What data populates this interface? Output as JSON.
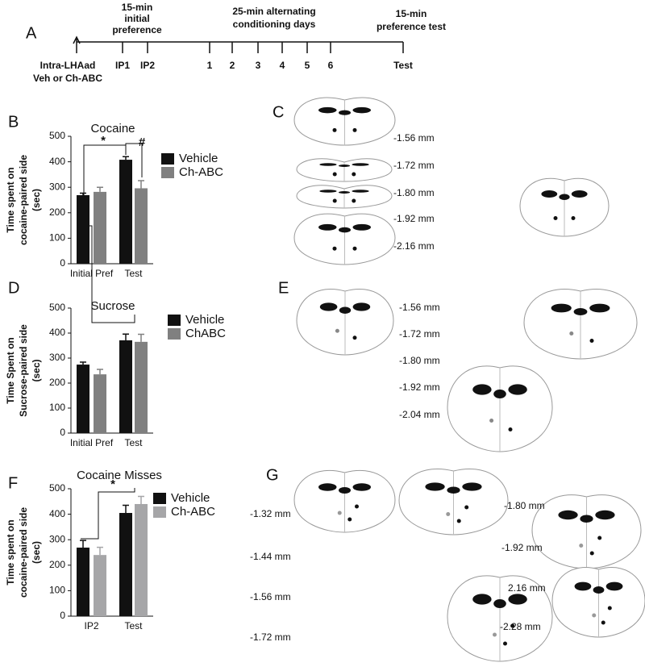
{
  "panel_letters": [
    "A",
    "B",
    "C",
    "D",
    "E",
    "F",
    "G"
  ],
  "timeline": {
    "top_labels": [
      [
        "15-min",
        "initial",
        "preference"
      ],
      [
        "25-min alternating",
        "conditioning days"
      ],
      [
        "15-min",
        "preference test"
      ]
    ],
    "injection": [
      "Intra-LHAad",
      "Veh or Ch-ABC"
    ],
    "points": [
      "IP1",
      "IP2",
      "1",
      "2",
      "3",
      "4",
      "5",
      "6",
      "Test"
    ]
  },
  "sections": {
    "C": [
      "-1.56 mm",
      "-1.72 mm",
      "-1.80 mm",
      "-1.92 mm",
      "-2.16 mm"
    ],
    "E": [
      "-1.56 mm",
      "-1.72 mm",
      "-1.80 mm",
      "-1.92 mm",
      "-2.04 mm"
    ],
    "G": [
      "-1.32 mm",
      "-1.44 mm",
      "-1.56 mm",
      "-1.72 mm",
      "-1.80 mm",
      "-1.92 mm",
      "2.16 mm",
      "-2.28 mm"
    ]
  },
  "chart_data": [
    {
      "type": "bar",
      "title": "Cocaine",
      "ylabel": [
        "Time spent on",
        "cocaine-paired side",
        "(sec)"
      ],
      "categories": [
        "Initial Pref",
        "Test"
      ],
      "series": [
        {
          "name": "Vehicle",
          "color": "#111111",
          "values": [
            269,
            408
          ],
          "errors": [
            8,
            12
          ]
        },
        {
          "name": "Ch-ABC",
          "color": "#808080",
          "values": [
            282,
            296
          ],
          "errors": [
            18,
            30
          ]
        }
      ],
      "ylim": [
        0,
        500
      ],
      "yticks": [
        0,
        100,
        200,
        300,
        400,
        500
      ],
      "annotations": [
        "*",
        "#"
      ]
    },
    {
      "type": "bar",
      "title": "Sucrose",
      "ylabel": [
        "Time Spent on",
        "Sucrose-paired side",
        "(sec)"
      ],
      "categories": [
        "Initial Pref",
        "Test"
      ],
      "series": [
        {
          "name": "Vehicle",
          "color": "#111111",
          "values": [
            274,
            371
          ],
          "errors": [
            10,
            25
          ]
        },
        {
          "name": "ChABC",
          "color": "#808080",
          "values": [
            235,
            365
          ],
          "errors": [
            20,
            30
          ]
        }
      ],
      "ylim": [
        0,
        500
      ],
      "yticks": [
        0,
        100,
        200,
        300,
        400,
        500
      ],
      "annotations": []
    },
    {
      "type": "bar",
      "title": "Cocaine Misses",
      "ylabel": [
        "Time spent on",
        "cocaine-paired side",
        "(sec)"
      ],
      "categories": [
        "IP2",
        "Test"
      ],
      "series": [
        {
          "name": "Vehicle",
          "color": "#111111",
          "values": [
            269,
            405
          ],
          "errors": [
            28,
            30
          ]
        },
        {
          "name": "Ch-ABC",
          "color": "#a6a6a8",
          "values": [
            240,
            440
          ],
          "errors": [
            30,
            30
          ]
        }
      ],
      "ylim": [
        0,
        500
      ],
      "yticks": [
        0,
        100,
        200,
        300,
        400,
        500
      ],
      "annotations": [
        "*"
      ]
    }
  ]
}
